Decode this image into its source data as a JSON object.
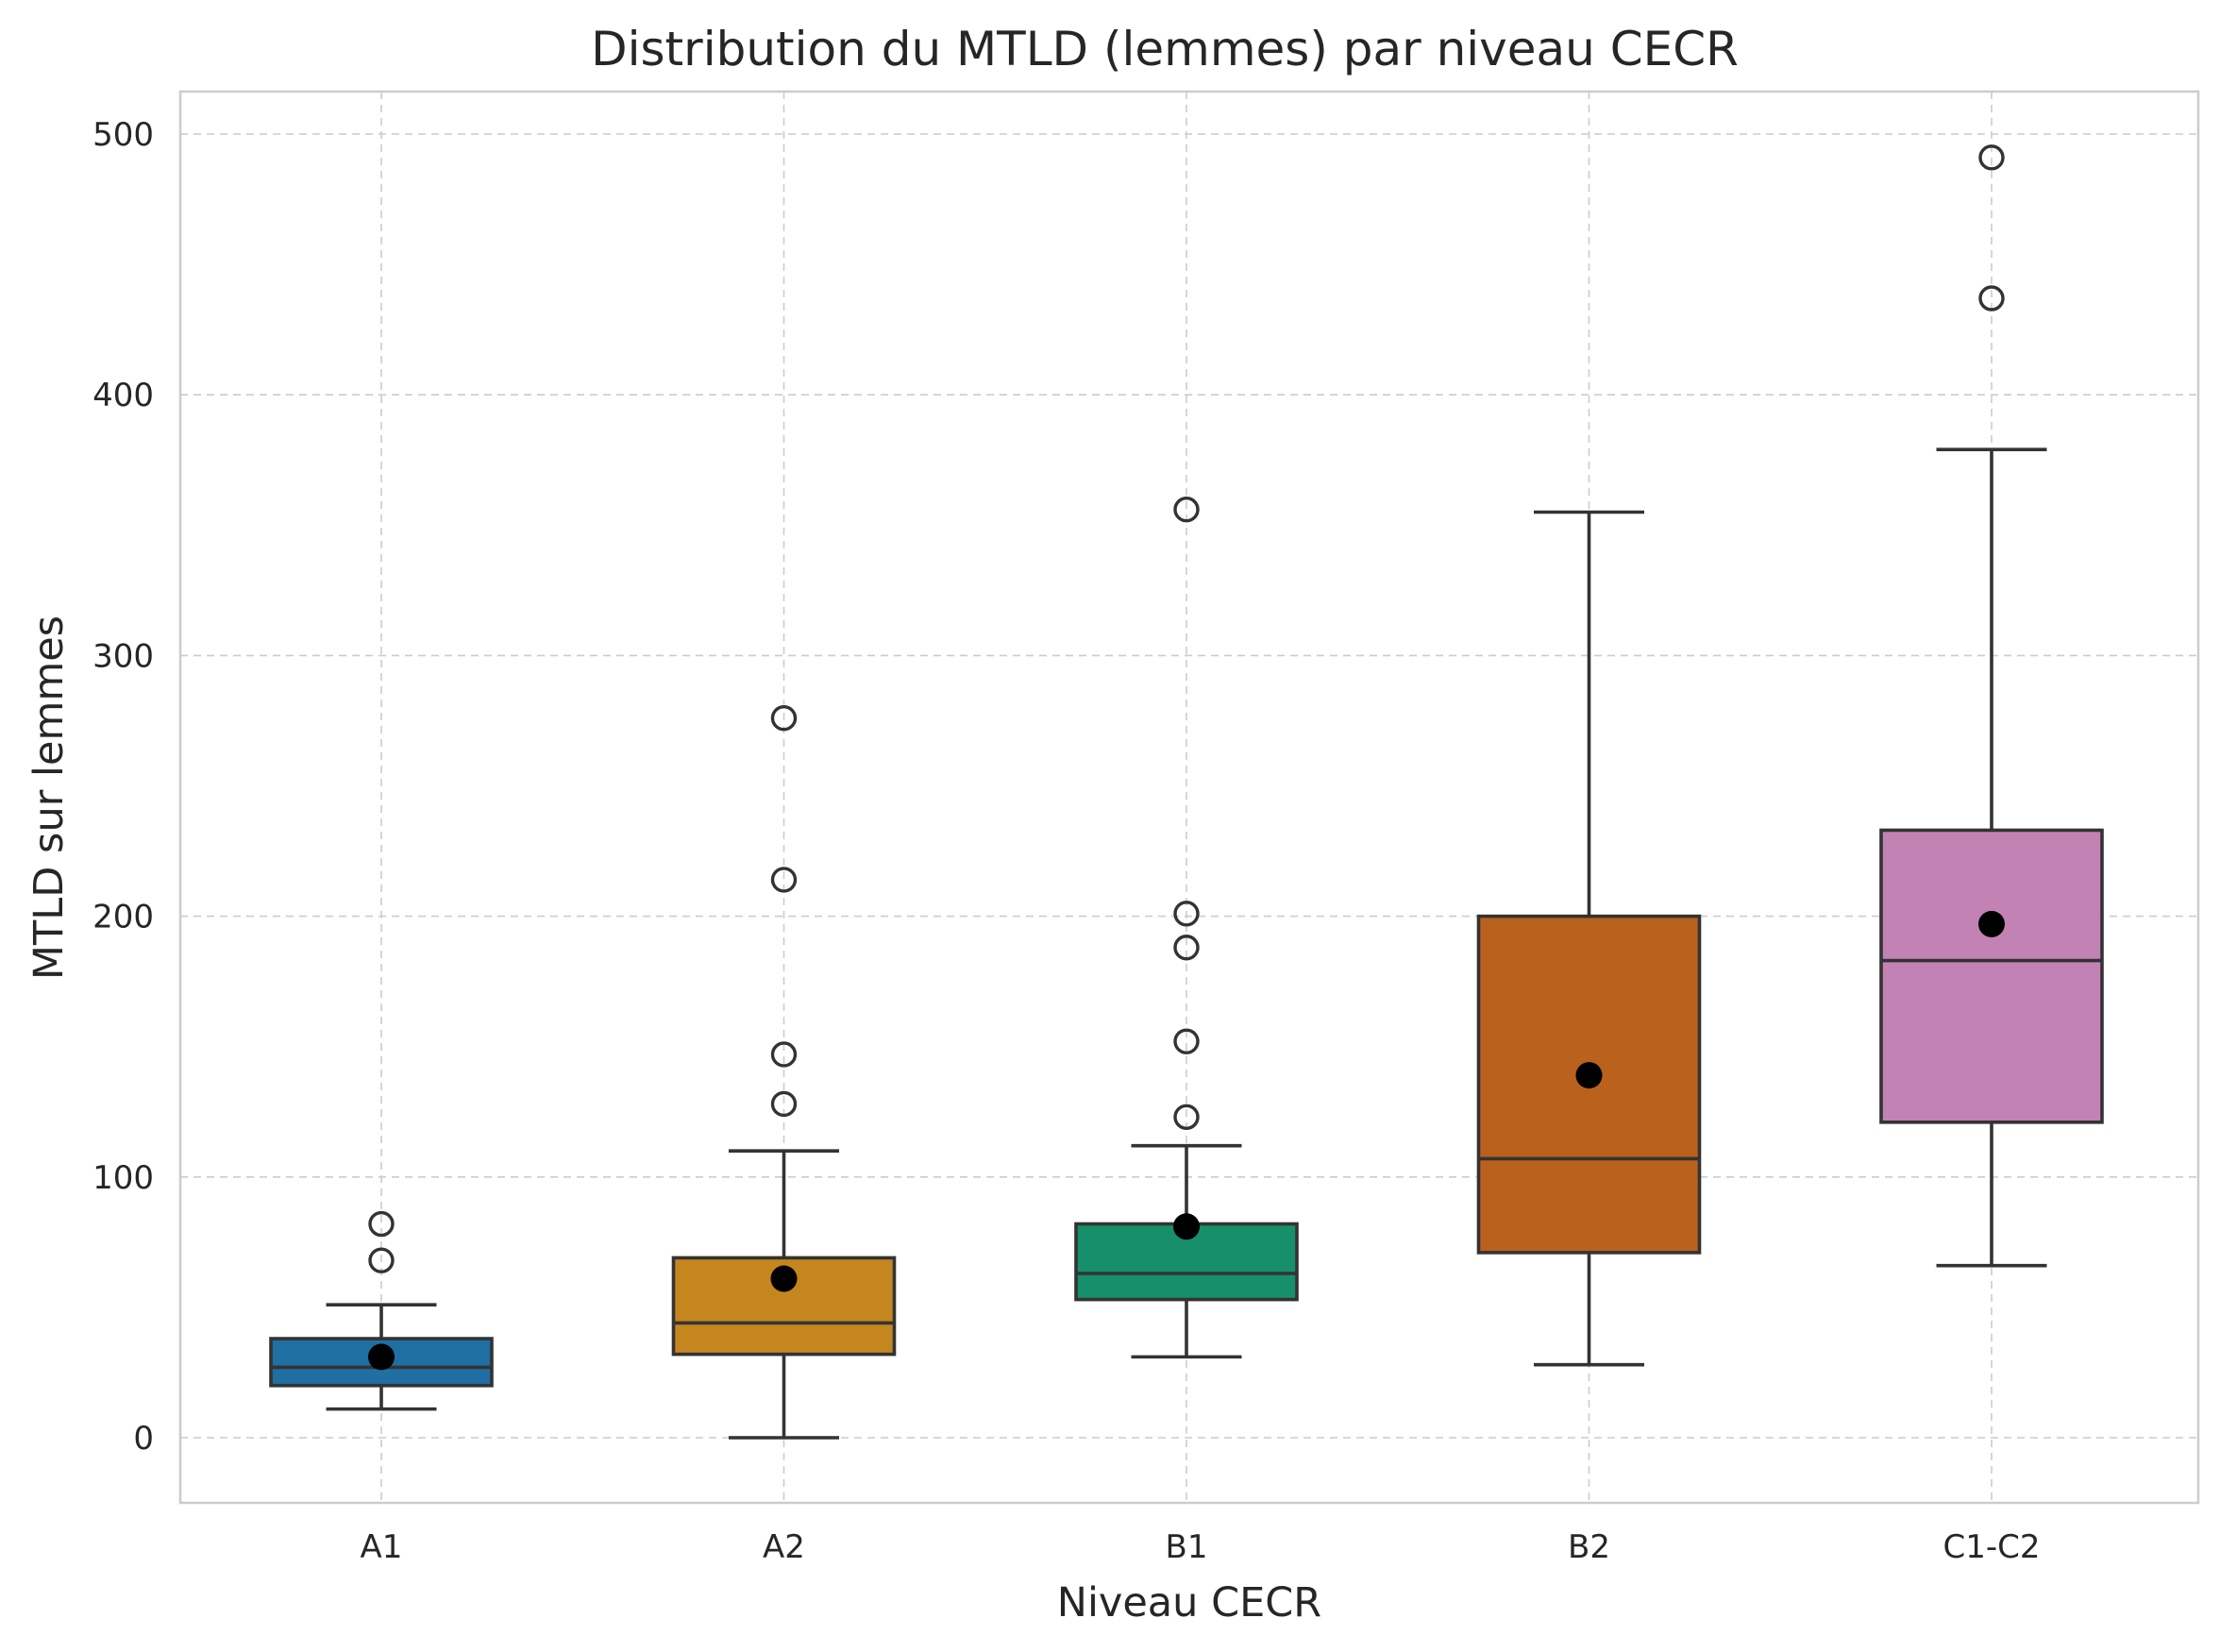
{
  "chart_data": {
    "type": "box",
    "title": "Distribution du MTLD (lemmes) par niveau CECR",
    "xlabel": "Niveau CECR",
    "ylabel": "MTLD sur lemmes",
    "ylim": [
      -24,
      517
    ],
    "yticks": [
      0,
      100,
      200,
      300,
      400,
      500
    ],
    "grid": true,
    "mean_marker": "black filled circle",
    "categories": [
      "A1",
      "A2",
      "B1",
      "B2",
      "C1-C2"
    ],
    "series": [
      {
        "category": "A1",
        "color": "#1f6fa3",
        "whisker_low": 11,
        "q1": 20,
        "median": 27,
        "q3": 38,
        "whisker_high": 51,
        "mean": 31,
        "outliers": [
          68,
          82
        ]
      },
      {
        "category": "A2",
        "color": "#c5861f",
        "whisker_low": 0,
        "q1": 32,
        "median": 44,
        "q3": 69,
        "whisker_high": 110,
        "mean": 61,
        "outliers": [
          128,
          147,
          214,
          276
        ]
      },
      {
        "category": "B1",
        "color": "#178f6a",
        "whisker_low": 31,
        "q1": 53,
        "median": 63,
        "q3": 82,
        "whisker_high": 112,
        "mean": 81,
        "outliers": [
          123,
          152,
          188,
          201,
          356
        ]
      },
      {
        "category": "B2",
        "color": "#ba611e",
        "whisker_low": 28,
        "q1": 71,
        "median": 107,
        "q3": 200,
        "whisker_high": 355,
        "mean": 139,
        "outliers": []
      },
      {
        "category": "C1-C2",
        "color": "#c382b4",
        "whisker_low": 66,
        "q1": 121,
        "median": 183,
        "q3": 233,
        "whisker_high": 379,
        "mean": 197,
        "outliers": [
          437,
          491
        ]
      }
    ]
  }
}
